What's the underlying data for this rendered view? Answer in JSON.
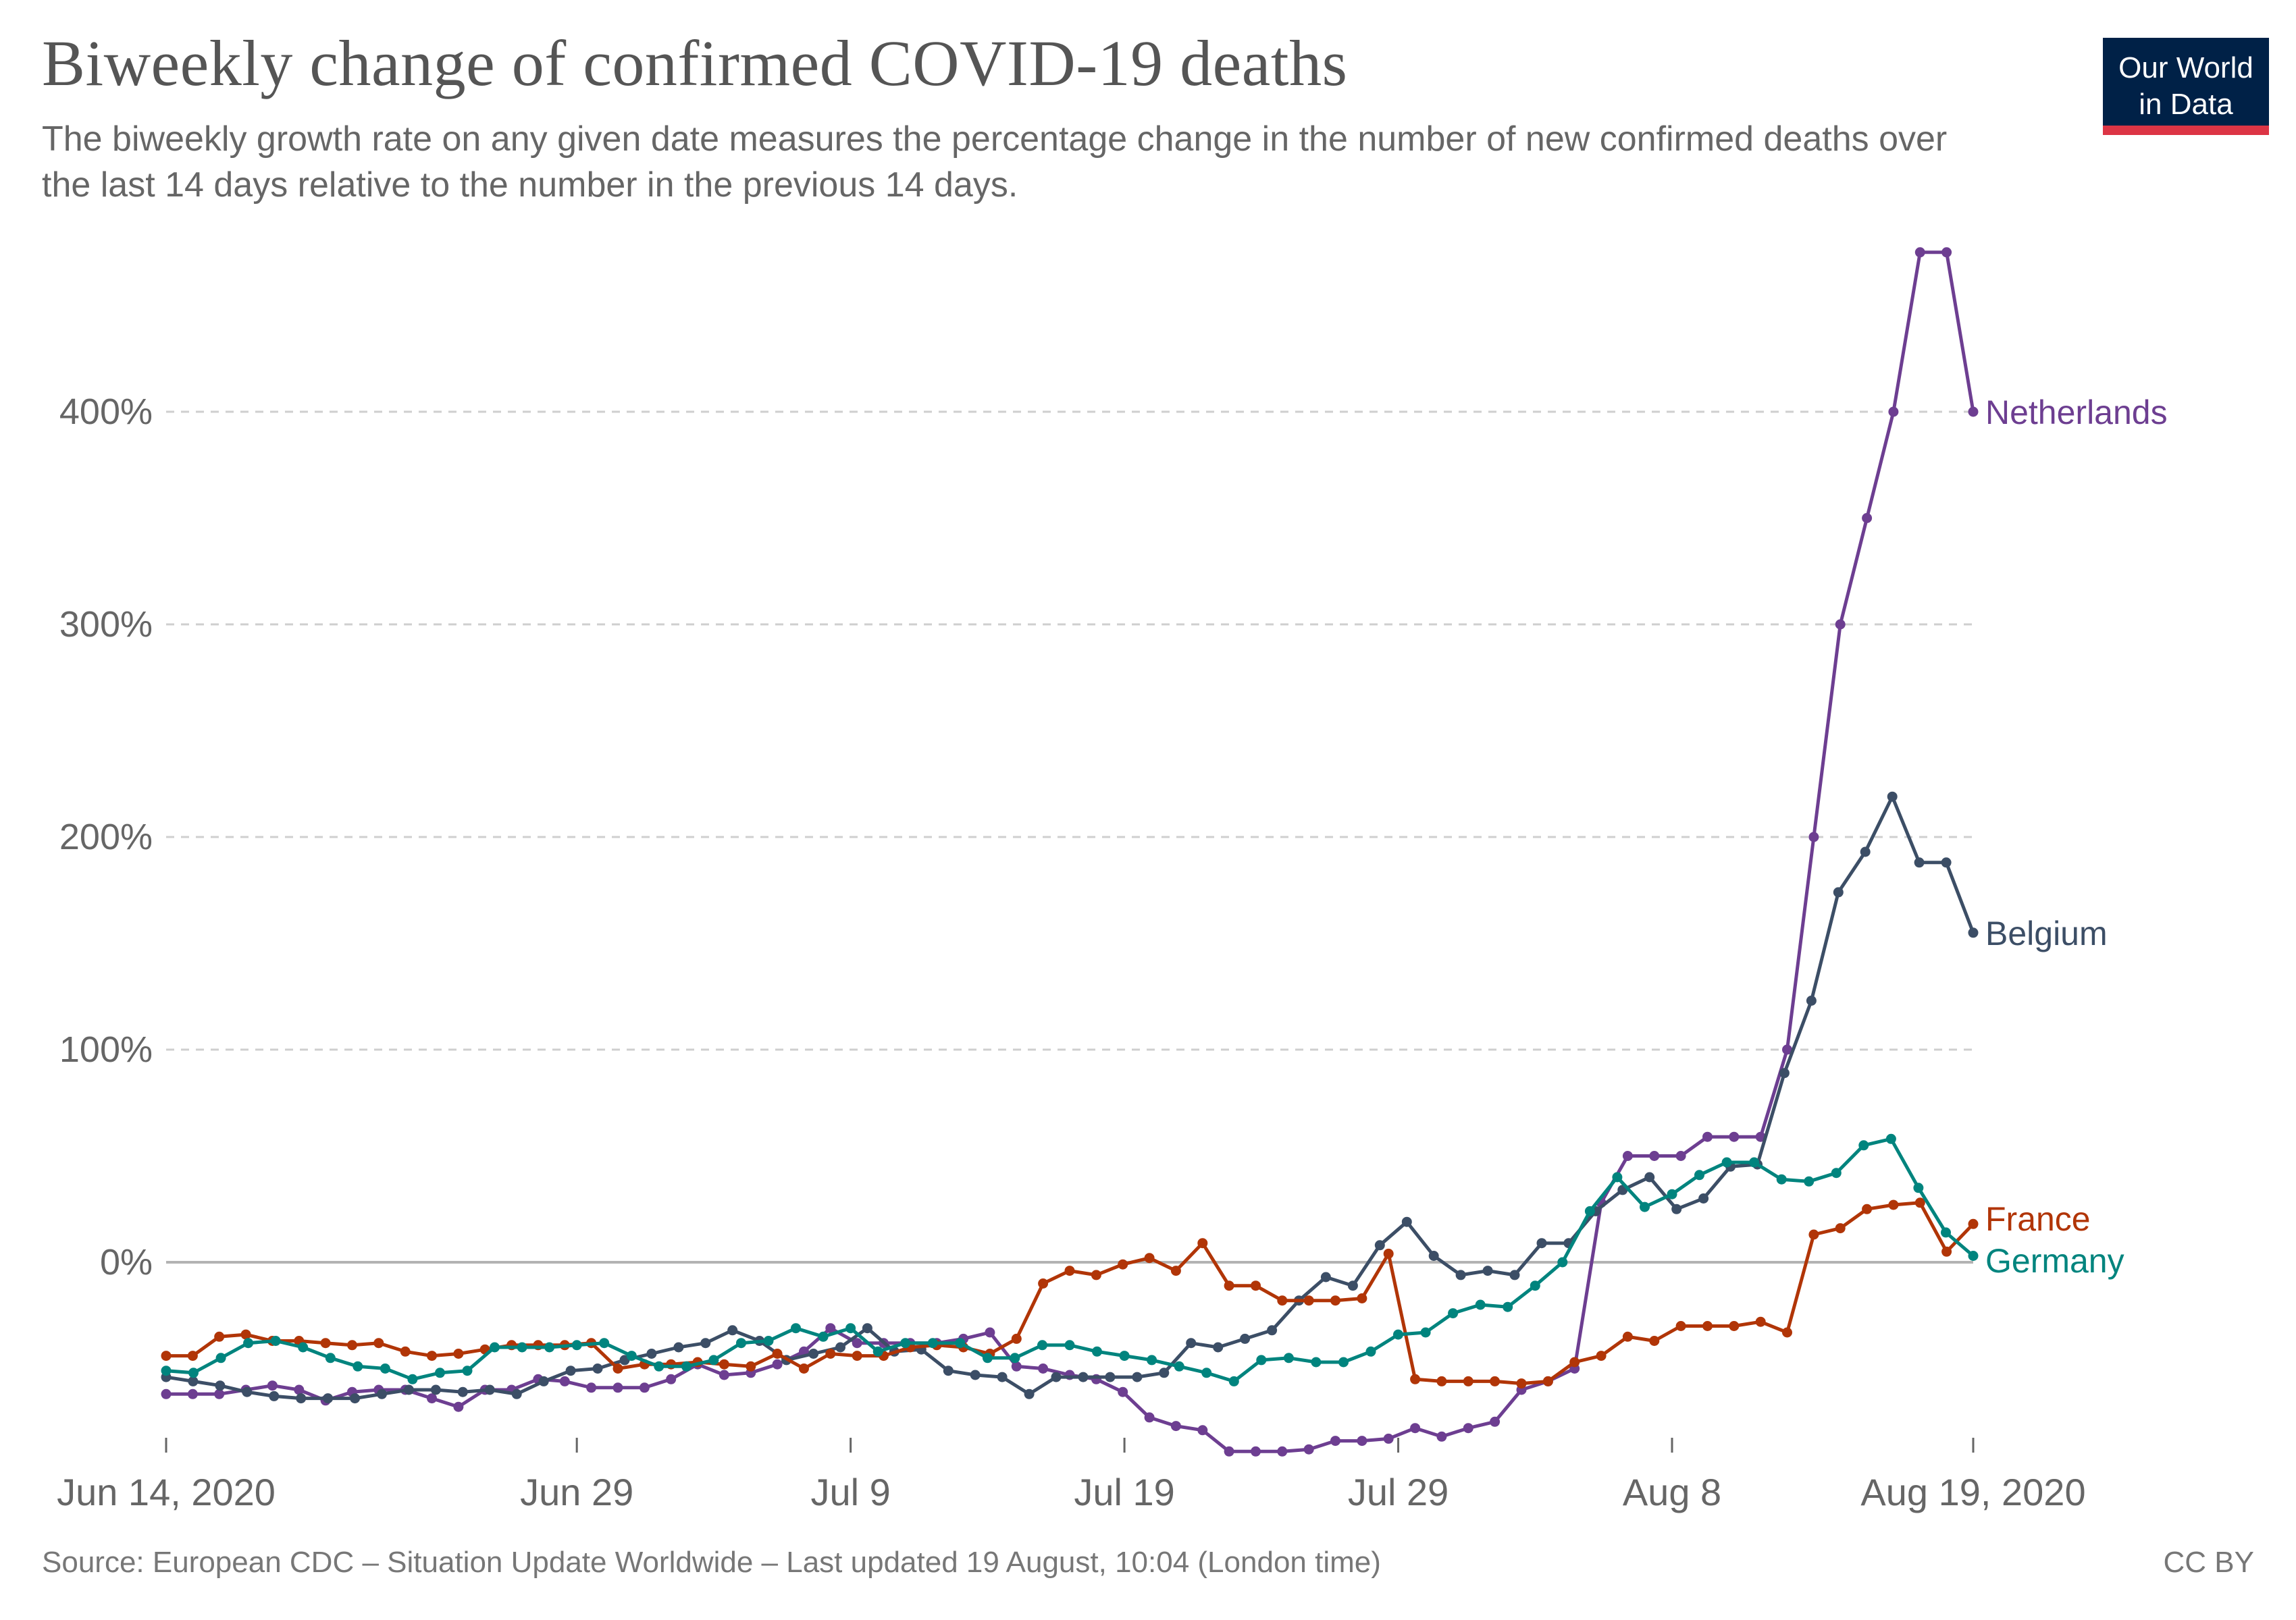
{
  "header": {
    "title": "Biweekly change of confirmed COVID-19 deaths",
    "subtitle": "The biweekly growth rate on any given date measures the percentage change in the number of new confirmed deaths over the last 14 days relative to the number in the previous 14 days."
  },
  "logo": {
    "line1": "Our World",
    "line2": "in Data",
    "bg_color": "#002147",
    "accent_color": "#dc3545"
  },
  "footer": {
    "source": "Source: European CDC – Situation Update Worldwide – Last updated 19 August, 10:04 (London time)",
    "license": "CC BY"
  },
  "chart_data": {
    "type": "line",
    "x_start": "2020-06-14",
    "x_end": "2020-08-19",
    "xlim": [
      "2020-06-14",
      "2020-08-19"
    ],
    "ylim": [
      -90,
      480
    ],
    "y_ticks": [
      {
        "value": 0,
        "label": "0%"
      },
      {
        "value": 100,
        "label": "100%"
      },
      {
        "value": 200,
        "label": "200%"
      },
      {
        "value": 300,
        "label": "300%"
      },
      {
        "value": 400,
        "label": "400%"
      }
    ],
    "x_ticks": [
      {
        "date": "2020-06-14",
        "label": "Jun 14, 2020"
      },
      {
        "date": "2020-06-29",
        "label": "Jun 29"
      },
      {
        "date": "2020-07-09",
        "label": "Jul 9"
      },
      {
        "date": "2020-07-19",
        "label": "Jul 19"
      },
      {
        "date": "2020-07-29",
        "label": "Jul 29"
      },
      {
        "date": "2020-08-08",
        "label": "Aug 8"
      },
      {
        "date": "2020-08-19",
        "label": "Aug 19, 2020"
      }
    ],
    "grid": true,
    "legend": "end-of-line labels",
    "series": [
      {
        "name": "Netherlands",
        "color": "#6d3e91",
        "values": [
          -62,
          -62,
          -62,
          -60,
          -58,
          -60,
          -65,
          -61,
          -60,
          -60,
          -64,
          -68,
          -60,
          -60,
          -55,
          -56,
          -59,
          -59,
          -59,
          -55,
          -48,
          -53,
          -52,
          -48,
          -42,
          -31,
          -38,
          -38,
          -38,
          -38,
          -36,
          -33,
          -49,
          -50,
          -53,
          -55,
          -61,
          -73,
          -77,
          -79,
          -89,
          -89,
          -89,
          -88,
          -84,
          -84,
          -83,
          -78,
          -82,
          -78,
          -75,
          -60,
          -56,
          -50,
          28,
          50,
          50,
          50,
          59,
          59,
          59,
          100,
          200,
          300,
          350,
          400,
          475,
          475,
          400
        ]
      },
      {
        "name": "Belgium",
        "color": "#3c4e66",
        "values": [
          -54,
          -56,
          -58,
          -61,
          -63,
          -64,
          -64,
          -64,
          -62,
          -60,
          -60,
          -61,
          -60,
          -62,
          -56,
          -51,
          -50,
          -46,
          -43,
          -40,
          -38,
          -32,
          -37,
          -46,
          -43,
          -40,
          -31,
          -42,
          -41,
          -51,
          -53,
          -54,
          -62,
          -54,
          -54,
          -54,
          -54,
          -52,
          -38,
          -40,
          -36,
          -32,
          -18,
          -7,
          -11,
          8,
          19,
          3,
          -6,
          -4,
          -6,
          9,
          9,
          24,
          34,
          40,
          25,
          30,
          45,
          46,
          89,
          123,
          174,
          193,
          219,
          188,
          188,
          155
        ]
      },
      {
        "name": "France",
        "color": "#b13507",
        "values": [
          -44,
          -44,
          -35,
          -34,
          -37,
          -37,
          -38,
          -39,
          -38,
          -42,
          -44,
          -43,
          -41,
          -39,
          -39,
          -39,
          -38,
          -50,
          -48,
          -48,
          -47,
          -48,
          -49,
          -43,
          -50,
          -43,
          -44,
          -44,
          -40,
          -39,
          -40,
          -43,
          -36,
          -10,
          -4,
          -6,
          -1,
          2,
          -4,
          9,
          -11,
          -11,
          -18,
          -18,
          -18,
          -17,
          4,
          -55,
          -56,
          -56,
          -56,
          -57,
          -56,
          -47,
          -44,
          -35,
          -37,
          -30,
          -30,
          -30,
          -28,
          -33,
          13,
          16,
          25,
          27,
          28,
          5,
          18
        ]
      },
      {
        "name": "Germany",
        "color": "#00847e",
        "values": [
          -51,
          -52,
          -45,
          -38,
          -37,
          -40,
          -45,
          -49,
          -50,
          -55,
          -52,
          -51,
          -40,
          -40,
          -40,
          -39,
          -38,
          -44,
          -49,
          -49,
          -46,
          -38,
          -37,
          -31,
          -35,
          -31,
          -42,
          -38,
          -38,
          -38,
          -45,
          -45,
          -39,
          -39,
          -42,
          -44,
          -46,
          -49,
          -52,
          -56,
          -46,
          -45,
          -47,
          -47,
          -42,
          -34,
          -33,
          -24,
          -20,
          -21,
          -11,
          0,
          24,
          40,
          26,
          32,
          41,
          47,
          47,
          39,
          38,
          42,
          55,
          58,
          35,
          14,
          3
        ]
      }
    ]
  }
}
